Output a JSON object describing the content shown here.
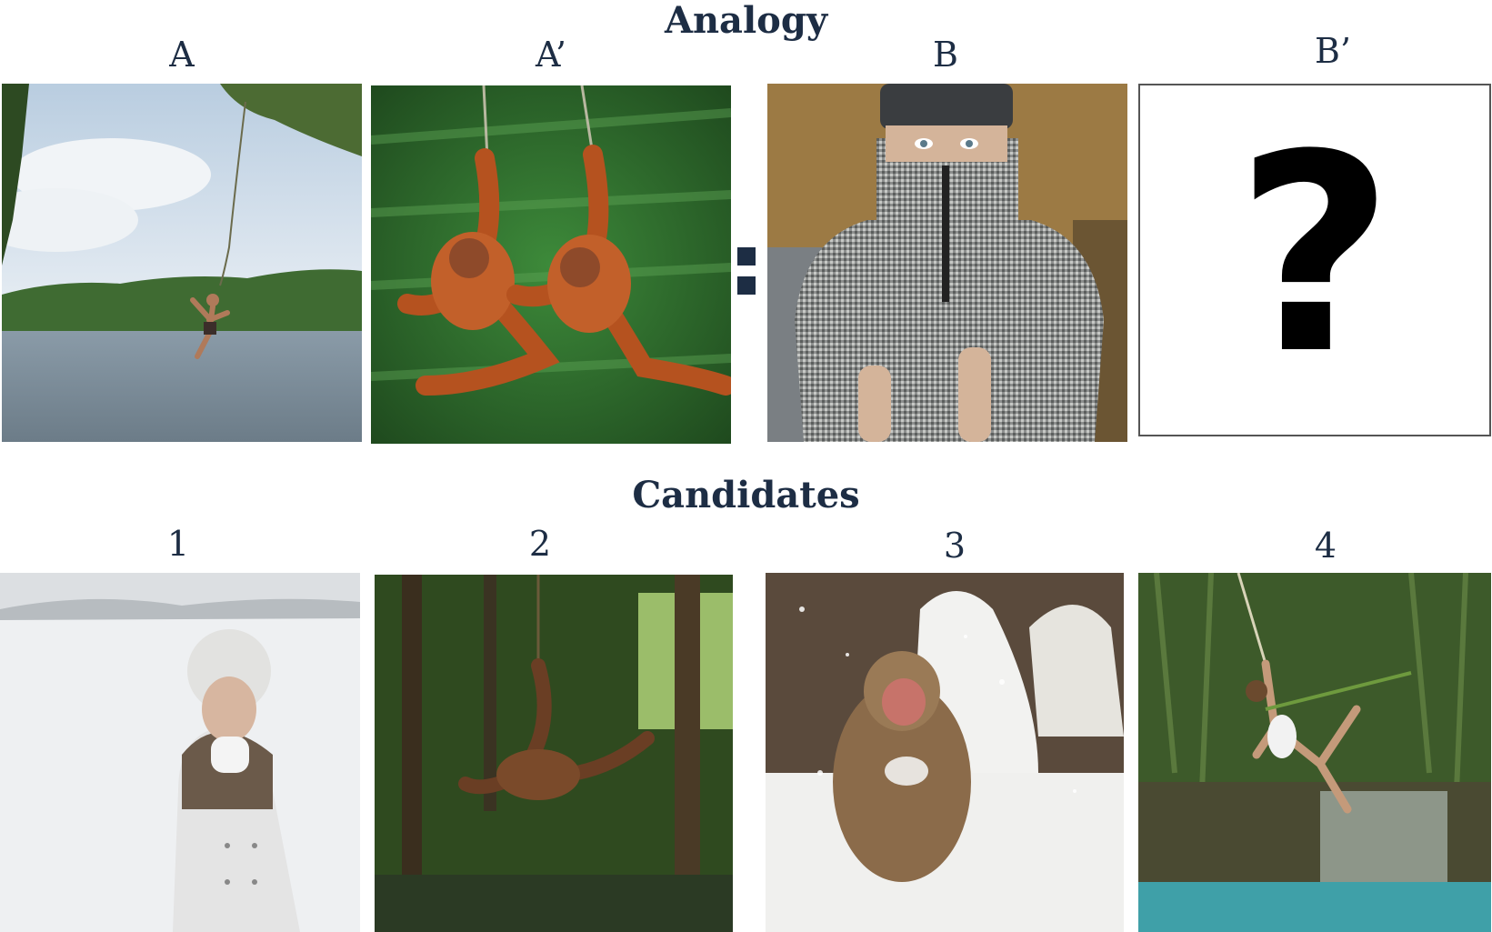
{
  "analogy": {
    "title": "Analogy",
    "labels": [
      "A",
      "A’",
      "B",
      "B’"
    ],
    "colon": ":",
    "unknown": "?",
    "images": [
      {
        "subject": "man swinging on rope over lake"
      },
      {
        "subject": "two orangutans swinging on vines"
      },
      {
        "subject": "man in knitted sweater, shivering"
      },
      {
        "subject": "question mark box"
      }
    ]
  },
  "candidates": {
    "title": "Candidates",
    "labels": [
      "1",
      "2",
      "3",
      "4"
    ],
    "images": [
      {
        "subject": "woman in white coat shivering in snow"
      },
      {
        "subject": "orangutan swinging in forest"
      },
      {
        "subject": "snow monkey in snowfall"
      },
      {
        "subject": "man swinging on rope over waterfall"
      }
    ]
  },
  "colors": {
    "text": "#1d2d44"
  }
}
